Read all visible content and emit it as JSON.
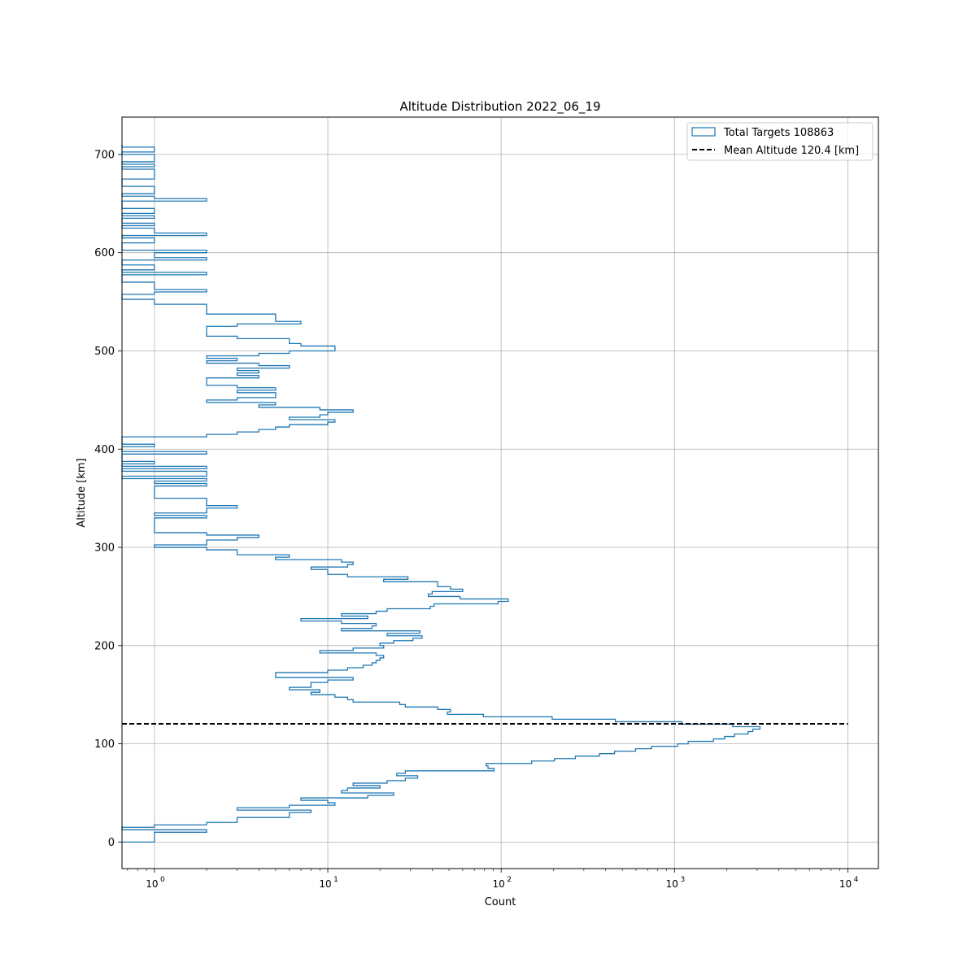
{
  "chart_data": {
    "type": "histogram",
    "orientation": "horizontal",
    "title": "Altitude Distribution 2022_06_19",
    "xlabel": "Count",
    "ylabel": "Altitude [km]",
    "xscale": "log",
    "xlim": [
      0.65,
      15000
    ],
    "ylim": [
      -27,
      738
    ],
    "grid": true,
    "bin_width_km": 2.5,
    "x_ticks": [
      {
        "value": 1,
        "base": "10",
        "exp": "0"
      },
      {
        "value": 10,
        "base": "10",
        "exp": "1"
      },
      {
        "value": 100,
        "base": "10",
        "exp": "2"
      },
      {
        "value": 1000,
        "base": "10",
        "exp": "3"
      },
      {
        "value": 10000,
        "base": "10",
        "exp": "4"
      }
    ],
    "y_ticks": [
      {
        "value": 0,
        "label": "0"
      },
      {
        "value": 100,
        "label": "100"
      },
      {
        "value": 200,
        "label": "200"
      },
      {
        "value": 300,
        "label": "300"
      },
      {
        "value": 400,
        "label": "400"
      },
      {
        "value": 500,
        "label": "500"
      },
      {
        "value": 600,
        "label": "600"
      },
      {
        "value": 700,
        "label": "700"
      }
    ],
    "legend": {
      "position": "upper right",
      "hist_label": "Total Targets 108863",
      "mean_label": "Mean Altitude 120.4 [km]"
    },
    "series": [
      {
        "name": "Total Targets 108863",
        "color": "#1f77b4",
        "style": "step",
        "profile": [
          [
            5,
            1
          ],
          [
            10,
            2
          ],
          [
            15,
            1
          ],
          [
            20,
            2
          ],
          [
            25,
            6
          ],
          [
            30,
            8
          ],
          [
            35,
            4
          ],
          [
            40,
            15
          ],
          [
            45,
            10
          ],
          [
            50,
            20
          ],
          [
            55,
            12
          ],
          [
            60,
            22
          ],
          [
            65,
            28
          ],
          [
            70,
            32
          ],
          [
            75,
            80
          ],
          [
            80,
            120
          ],
          [
            85,
            250
          ],
          [
            90,
            400
          ],
          [
            95,
            700
          ],
          [
            100,
            1100
          ],
          [
            105,
            1800
          ],
          [
            110,
            2500
          ],
          [
            115,
            3000
          ],
          [
            117.5,
            3000
          ],
          [
            120,
            1500
          ],
          [
            122.5,
            900
          ],
          [
            125,
            250
          ],
          [
            130,
            100
          ],
          [
            135,
            45
          ],
          [
            140,
            20
          ],
          [
            145,
            15
          ],
          [
            150,
            10
          ],
          [
            155,
            6
          ],
          [
            160,
            9
          ],
          [
            165,
            14
          ],
          [
            170,
            6
          ],
          [
            175,
            9
          ],
          [
            180,
            12
          ],
          [
            185,
            15
          ],
          [
            190,
            20
          ],
          [
            195,
            14
          ],
          [
            200,
            28
          ],
          [
            205,
            26
          ],
          [
            210,
            30
          ],
          [
            215,
            22
          ],
          [
            220,
            20
          ],
          [
            225,
            11
          ],
          [
            230,
            12
          ],
          [
            235,
            15
          ],
          [
            240,
            55
          ],
          [
            245,
            85
          ],
          [
            250,
            70
          ],
          [
            255,
            55
          ],
          [
            260,
            40
          ],
          [
            265,
            30
          ],
          [
            270,
            20
          ],
          [
            275,
            17
          ],
          [
            280,
            14
          ],
          [
            285,
            10
          ],
          [
            290,
            7
          ],
          [
            295,
            4
          ],
          [
            300,
            2
          ],
          [
            305,
            3
          ],
          [
            310,
            4
          ],
          [
            315,
            2
          ],
          [
            320,
            1
          ],
          [
            325,
            1.5
          ],
          [
            330,
            2
          ],
          [
            335,
            1
          ],
          [
            340,
            2.5
          ],
          [
            345,
            3
          ],
          [
            350,
            1
          ],
          [
            355,
            2
          ],
          [
            360,
            1
          ],
          [
            365,
            1
          ],
          [
            370,
            1
          ],
          [
            375,
            2
          ],
          [
            380,
            1
          ],
          [
            385,
            1
          ],
          [
            390,
            0.7
          ],
          [
            395,
            0.7
          ],
          [
            400,
            1
          ],
          [
            405,
            1
          ],
          [
            410,
            1
          ],
          [
            415,
            2
          ],
          [
            420,
            4
          ],
          [
            425,
            7
          ],
          [
            430,
            10
          ],
          [
            435,
            11
          ],
          [
            440,
            9
          ],
          [
            445,
            5
          ],
          [
            450,
            3
          ],
          [
            455,
            6
          ],
          [
            460,
            4
          ],
          [
            465,
            3
          ],
          [
            470,
            2
          ],
          [
            475,
            4
          ],
          [
            480,
            3
          ],
          [
            485,
            5
          ],
          [
            490,
            2
          ],
          [
            495,
            4
          ],
          [
            500,
            7
          ],
          [
            505,
            12
          ],
          [
            510,
            7
          ],
          [
            515,
            3
          ],
          [
            520,
            2
          ],
          [
            525,
            5
          ],
          [
            530,
            6
          ],
          [
            535,
            4
          ],
          [
            540,
            2
          ],
          [
            545,
            3
          ],
          [
            550,
            2
          ],
          [
            555,
            1
          ],
          [
            560,
            2
          ],
          [
            565,
            1
          ],
          [
            570,
            1
          ],
          [
            575,
            1
          ],
          [
            580,
            1
          ],
          [
            585,
            1
          ],
          [
            590,
            1
          ],
          [
            595,
            2
          ],
          [
            600,
            1
          ],
          [
            605,
            1
          ],
          [
            610,
            1
          ],
          [
            615,
            1
          ],
          [
            620,
            2
          ],
          [
            625,
            1
          ],
          [
            630,
            1
          ],
          [
            640,
            1
          ],
          [
            650,
            1
          ],
          [
            660,
            1
          ],
          [
            670,
            1
          ],
          [
            680,
            1
          ],
          [
            690,
            1
          ],
          [
            700,
            1
          ],
          [
            705,
            1
          ]
        ]
      },
      {
        "name": "Mean Altitude 120.4 [km]",
        "color": "#000000",
        "style": "dashed",
        "y": 120.4,
        "x_range": [
          0.65,
          10000
        ]
      }
    ]
  }
}
